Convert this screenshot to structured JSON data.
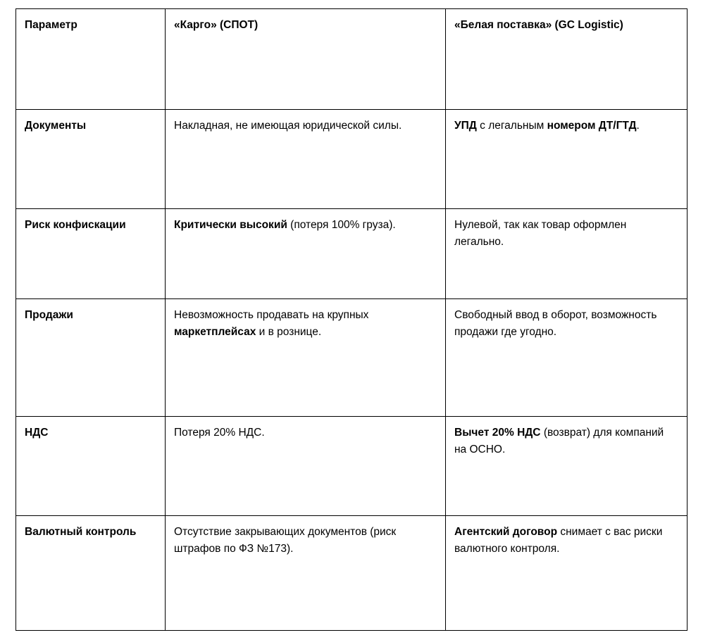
{
  "table": {
    "rows": [
      {
        "cells": [
          [
            {
              "t": "Параметр",
              "b": true
            }
          ],
          [
            {
              "t": "«Карго» (СПОТ)",
              "b": true
            }
          ],
          [
            {
              "t": "«Белая поставка» (GC Logistic)",
              "b": true
            }
          ]
        ]
      },
      {
        "cells": [
          [
            {
              "t": "Документы",
              "b": true
            }
          ],
          [
            {
              "t": "Накладная, не имеющая юридической силы.",
              "b": false
            }
          ],
          [
            {
              "t": "УПД",
              "b": true
            },
            {
              "t": " с легальным ",
              "b": false
            },
            {
              "t": "номером ДТ/ГТД",
              "b": true
            },
            {
              "t": ".",
              "b": false
            }
          ]
        ]
      },
      {
        "cells": [
          [
            {
              "t": "Риск конфискации",
              "b": true
            }
          ],
          [
            {
              "t": "Критически высокий",
              "b": true
            },
            {
              "t": " (потеря 100% груза).",
              "b": false
            }
          ],
          [
            {
              "t": "Нулевой, так как товар оформлен легально.",
              "b": false
            }
          ]
        ]
      },
      {
        "cells": [
          [
            {
              "t": "Продажи",
              "b": true
            }
          ],
          [
            {
              "t": "Невозможность продавать на крупных ",
              "b": false
            },
            {
              "t": "маркетплейсах",
              "b": true
            },
            {
              "t": " и в рознице.",
              "b": false
            }
          ],
          [
            {
              "t": "Свободный ввод в оборот, возможность продажи где угодно.",
              "b": false
            }
          ]
        ]
      },
      {
        "cells": [
          [
            {
              "t": "НДС",
              "b": true
            }
          ],
          [
            {
              "t": "Потеря 20% НДС.",
              "b": false
            }
          ],
          [
            {
              "t": "Вычет 20% НДС",
              "b": true
            },
            {
              "t": " (возврат) для компаний на ОСНО.",
              "b": false
            }
          ]
        ]
      },
      {
        "cells": [
          [
            {
              "t": "Валютный контроль",
              "b": true
            }
          ],
          [
            {
              "t": "Отсутствие закрывающих документов (риск штрафов по ФЗ №173).",
              "b": false
            }
          ],
          [
            {
              "t": "Агентский договор",
              "b": true
            },
            {
              "t": " снимает с вас риски валютного контроля.",
              "b": false
            }
          ]
        ]
      }
    ]
  }
}
